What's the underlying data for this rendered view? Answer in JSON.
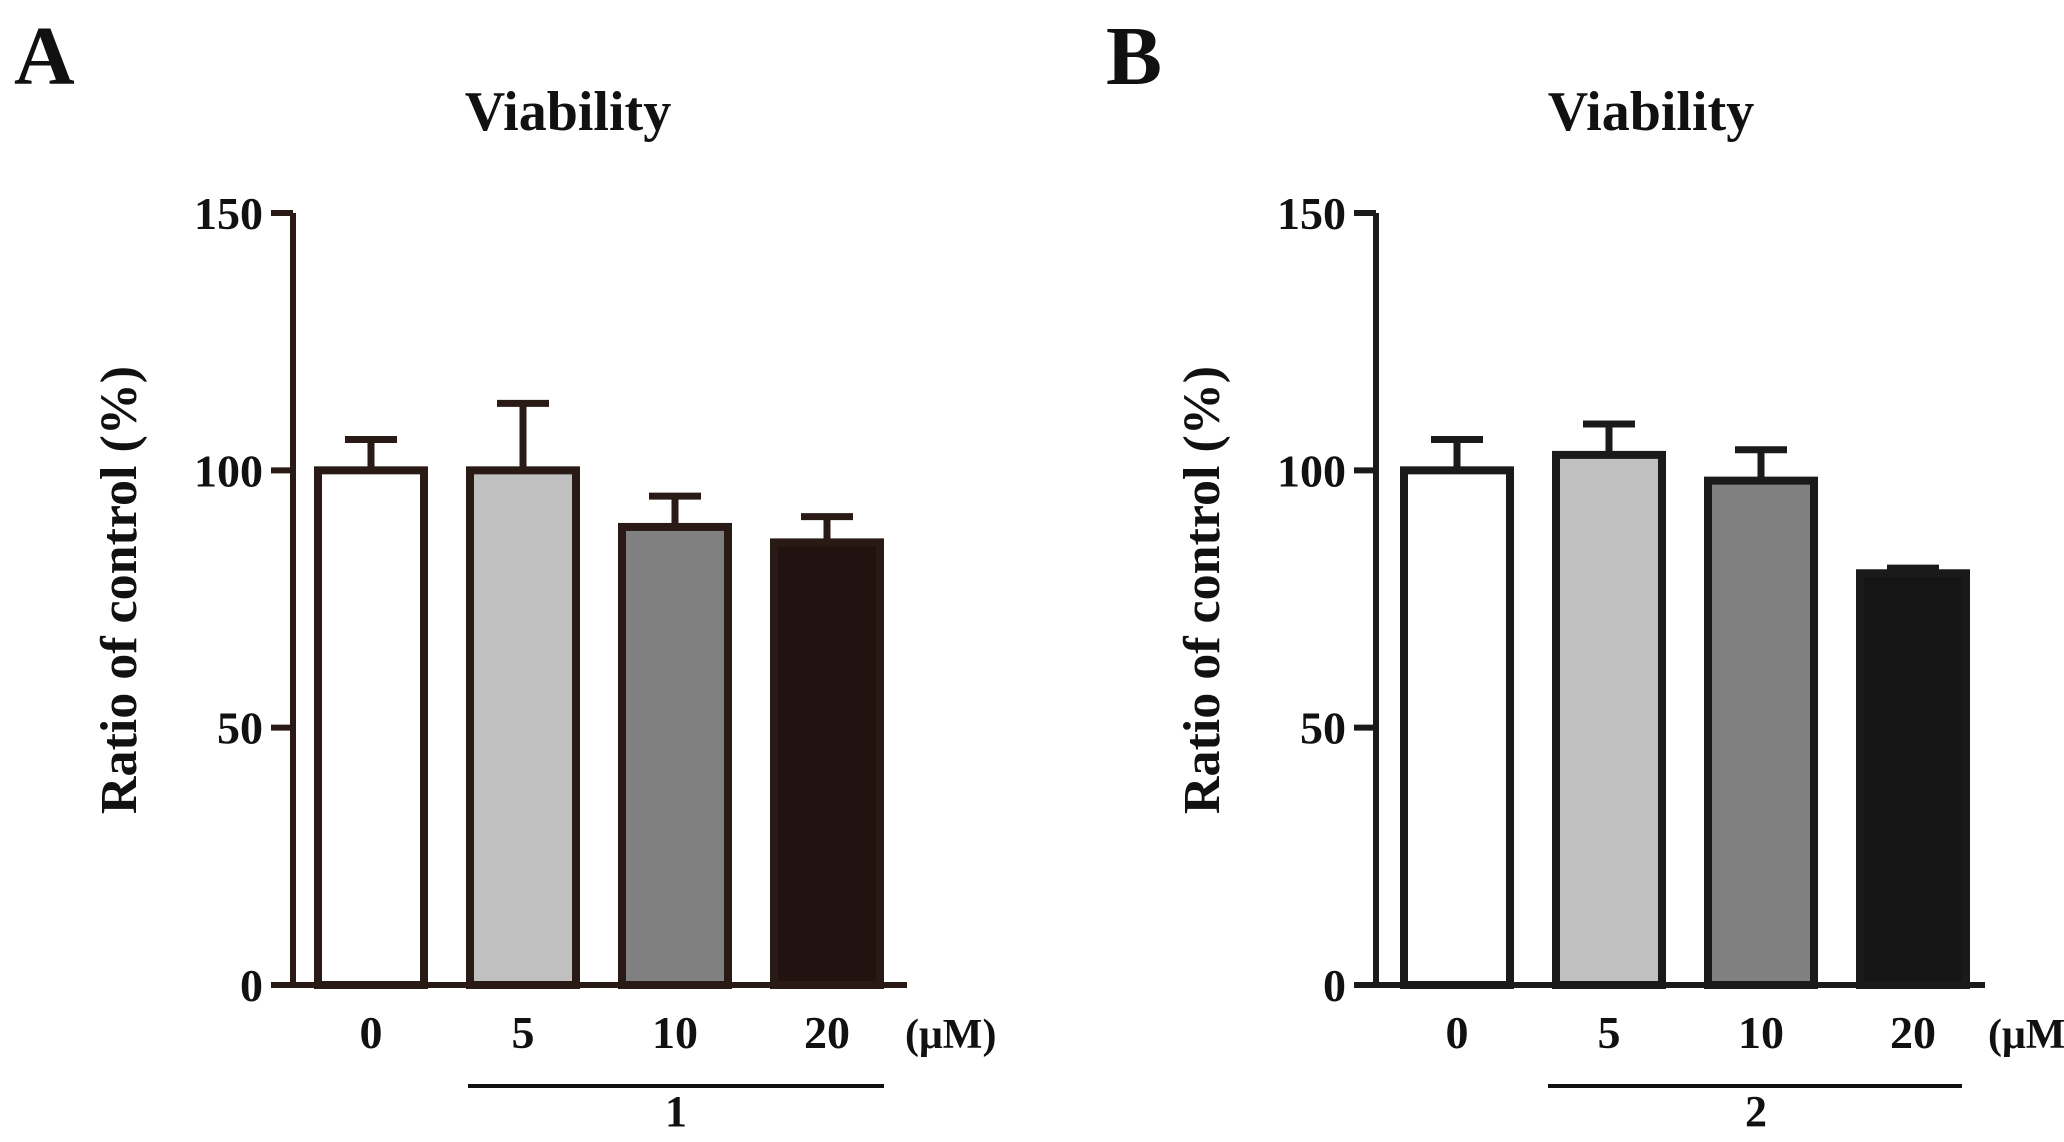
{
  "chart_data": [
    {
      "panel_label": "A",
      "type": "bar",
      "title": "Viability",
      "ylabel": "Ratio of control (%)",
      "x_unit": "(μM)",
      "group_label": "1",
      "categories": [
        "0",
        "5",
        "10",
        "20"
      ],
      "values": [
        100,
        100,
        89,
        86
      ],
      "errors": [
        6,
        13,
        6,
        5
      ],
      "fills": [
        "#ffffff",
        "#c0c0c0",
        "#808080",
        "#221210"
      ],
      "stroke": "#2a1a15",
      "ylim": [
        0,
        150
      ],
      "yticks": [
        0,
        50,
        100,
        150
      ],
      "grid": false
    },
    {
      "panel_label": "B",
      "type": "bar",
      "title": "Viability",
      "ylabel": "Ratio of control (%)",
      "x_unit": "(μM)",
      "group_label": "2",
      "categories": [
        "0",
        "5",
        "10",
        "20"
      ],
      "values": [
        100,
        103,
        98,
        80
      ],
      "errors": [
        6,
        6,
        6,
        1
      ],
      "fills": [
        "#ffffff",
        "#c0c0c0",
        "#808080",
        "#151515"
      ],
      "stroke": "#1a1a1a",
      "ylim": [
        0,
        150
      ],
      "yticks": [
        0,
        50,
        100,
        150
      ],
      "grid": false
    }
  ]
}
